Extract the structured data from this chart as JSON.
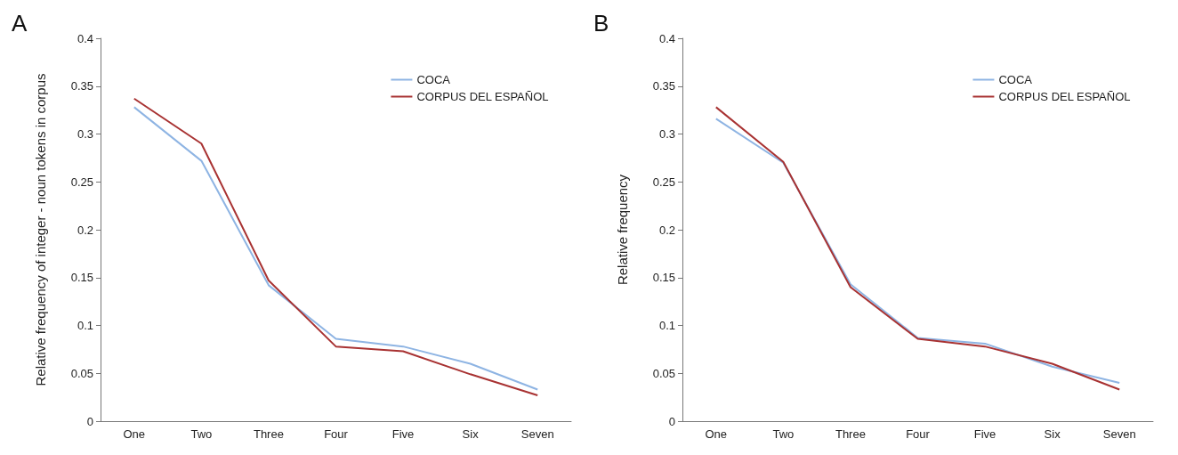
{
  "chart_data": [
    {
      "type": "line",
      "title": "A",
      "ylabel": "Relative frequency of integer - noun tokens in corpus",
      "categories": [
        "One",
        "Two",
        "Three",
        "Four",
        "Five",
        "Six",
        "Seven"
      ],
      "ylim": [
        0,
        0.4
      ],
      "yticks": [
        0,
        0.05,
        0.1,
        0.15,
        0.2,
        0.25,
        0.3,
        0.35,
        0.4
      ],
      "grid": false,
      "legend": "top right",
      "marker": "none",
      "line_style": "solid",
      "series": [
        {
          "name": "COCA",
          "color": "#8eb4e3",
          "values": [
            0.328,
            0.272,
            0.142,
            0.086,
            0.078,
            0.06,
            0.033
          ]
        },
        {
          "name": "CORPUS DEL ESPAÑOL",
          "color": "#a83232",
          "values": [
            0.337,
            0.29,
            0.147,
            0.078,
            0.073,
            0.049,
            0.027
          ]
        }
      ]
    },
    {
      "type": "line",
      "title": "B",
      "ylabel": "Relative frequency",
      "categories": [
        "One",
        "Two",
        "Three",
        "Four",
        "Five",
        "Six",
        "Seven"
      ],
      "ylim": [
        0,
        0.4
      ],
      "yticks": [
        0,
        0.05,
        0.1,
        0.15,
        0.2,
        0.25,
        0.3,
        0.35,
        0.4
      ],
      "grid": false,
      "legend": "top right",
      "marker": "none",
      "line_style": "solid",
      "series": [
        {
          "name": "COCA",
          "color": "#8eb4e3",
          "values": [
            0.316,
            0.27,
            0.143,
            0.087,
            0.081,
            0.057,
            0.04
          ]
        },
        {
          "name": "CORPUS DEL ESPAÑOL",
          "color": "#a83232",
          "values": [
            0.328,
            0.271,
            0.14,
            0.086,
            0.078,
            0.06,
            0.033
          ]
        }
      ]
    }
  ]
}
